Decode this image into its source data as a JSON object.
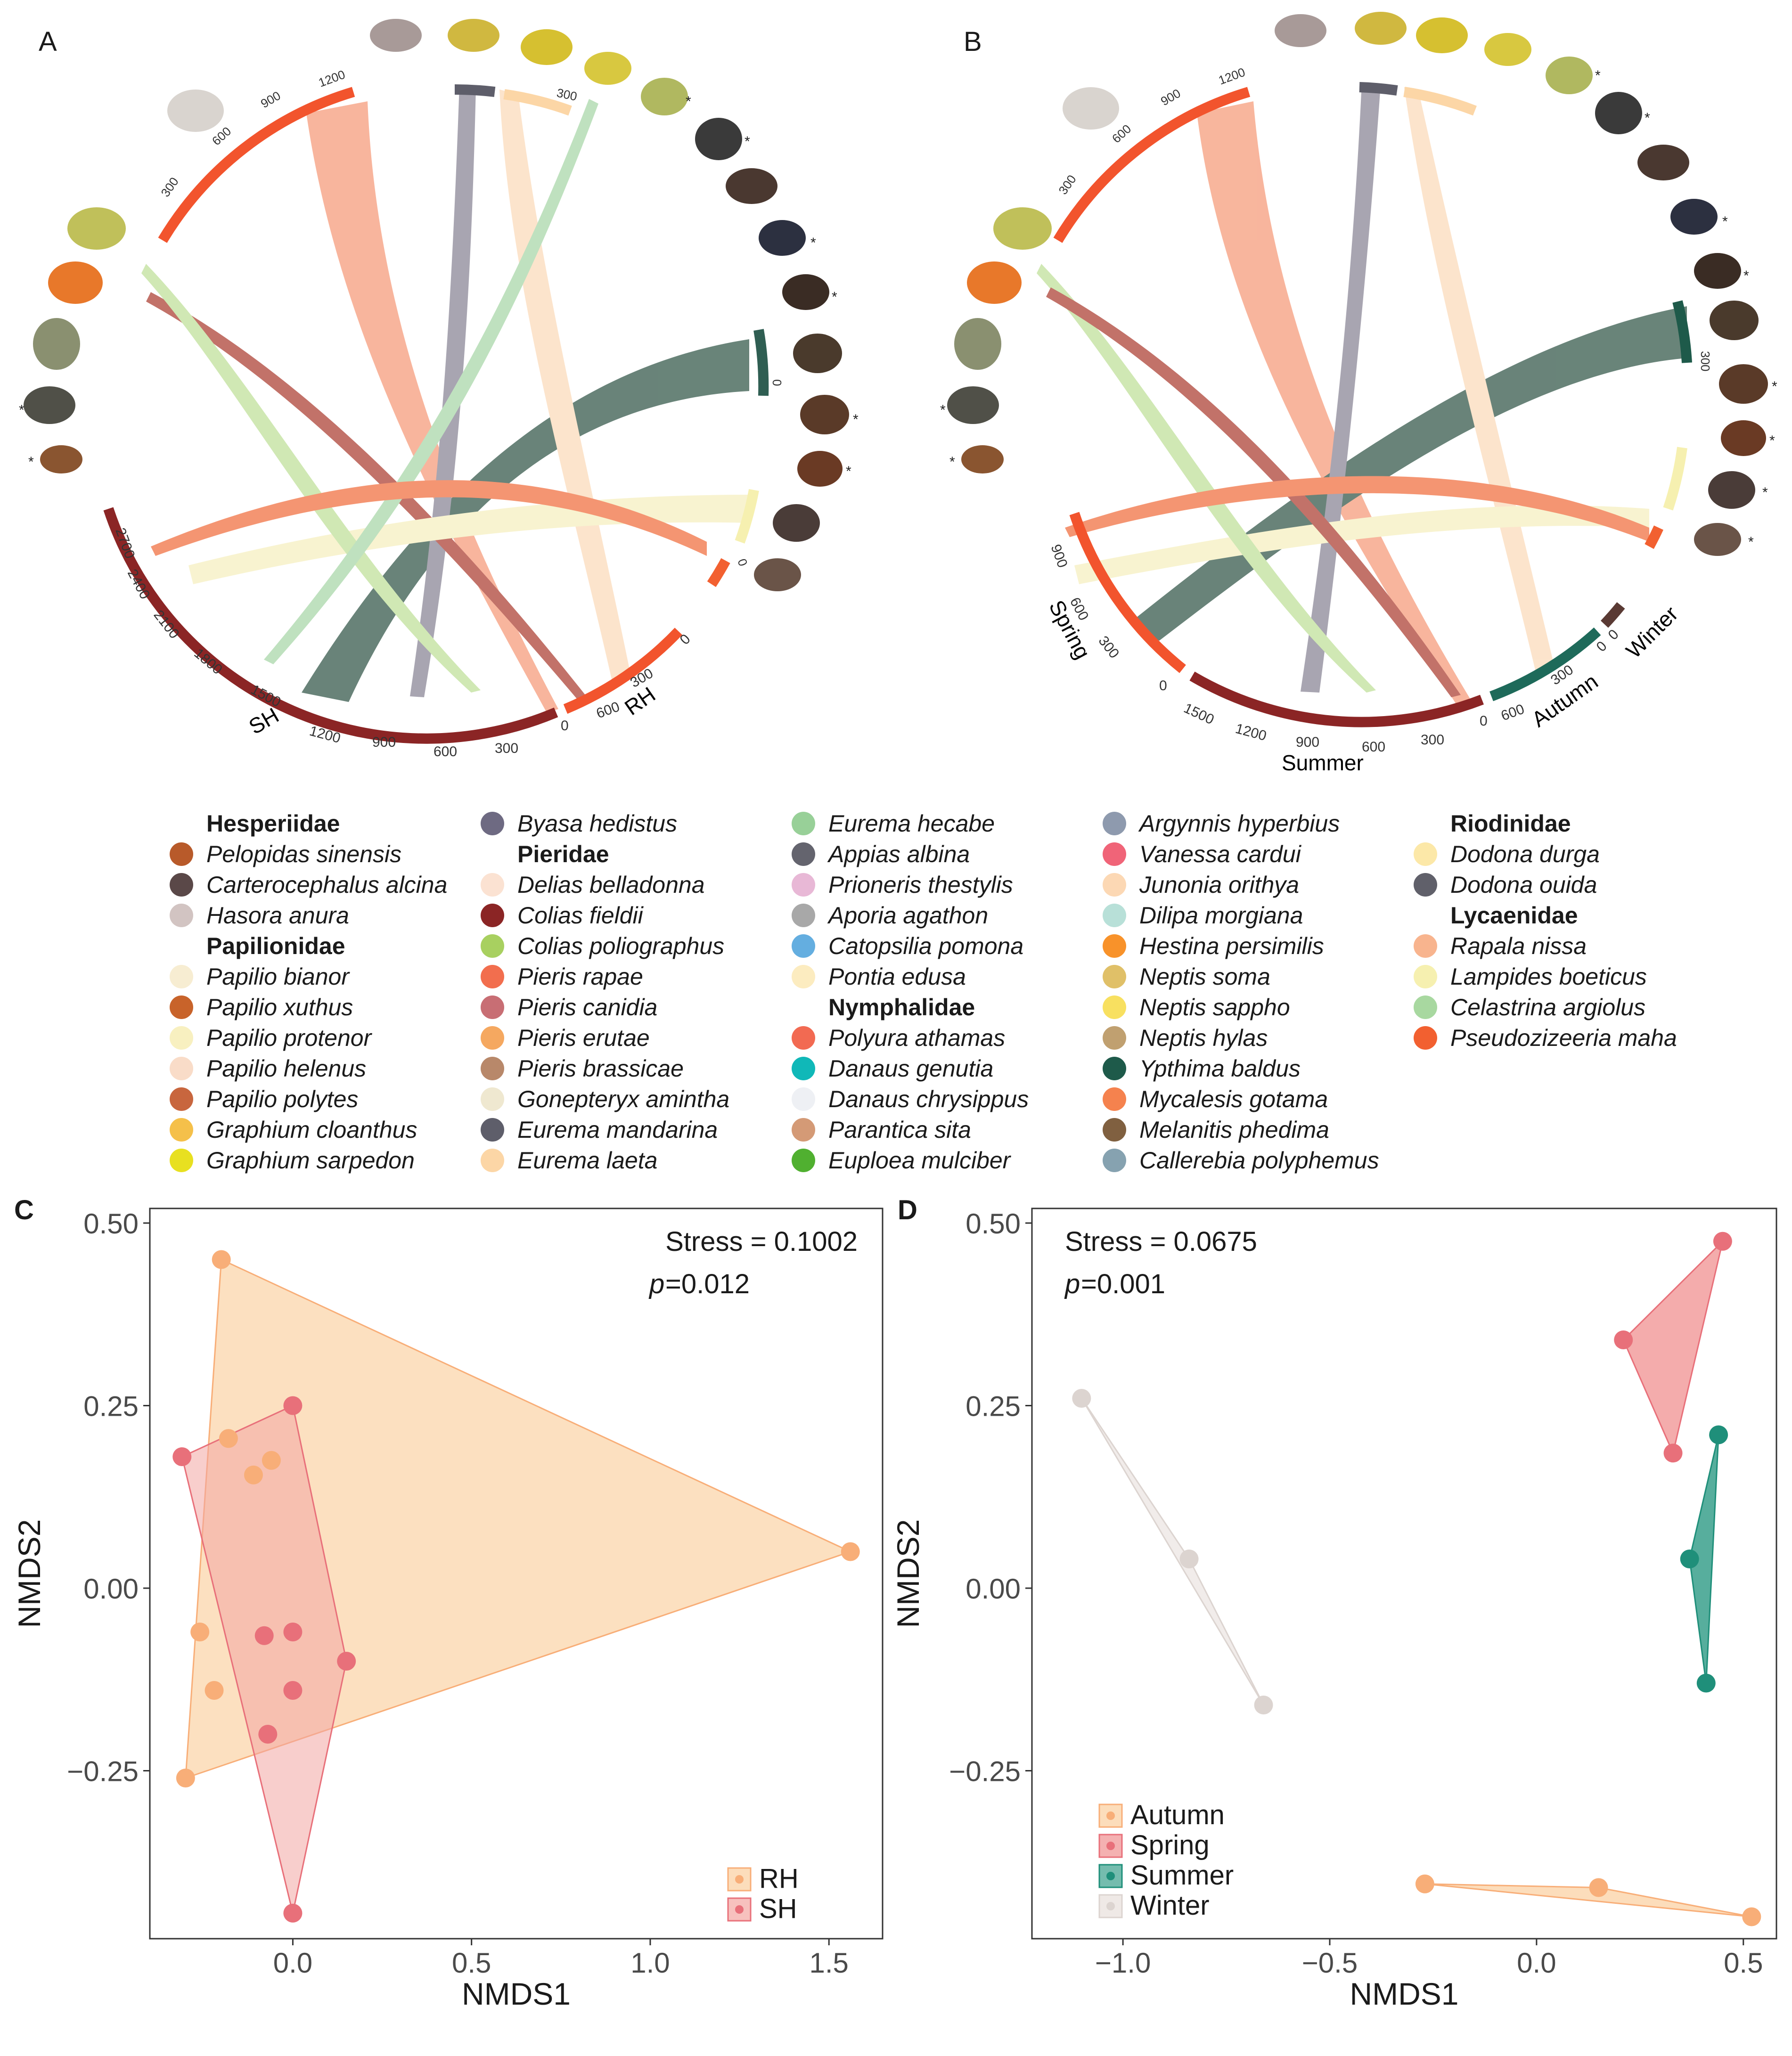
{
  "panels": {
    "A": "A",
    "B": "B",
    "C": "C",
    "D": "D"
  },
  "chord_a": {
    "groups": [
      {
        "label": "SH",
        "ticks": [
          "2700",
          "2400",
          "2100",
          "1800",
          "1500",
          "1200",
          "900",
          "600",
          "300",
          "0"
        ],
        "color": "#8b2525"
      },
      {
        "label": "RH",
        "ticks": [
          "600",
          "300",
          "0"
        ],
        "color": "#f2542d"
      }
    ],
    "species_ticks_left": [
      "300",
      "600",
      "900",
      "1200"
    ],
    "species_ticks_right": [
      "300",
      "0",
      "0"
    ],
    "stars": [
      "*",
      "*",
      "*",
      "*",
      "*",
      "*",
      "*",
      "*"
    ]
  },
  "chord_b": {
    "groups": [
      {
        "label": "Spring",
        "ticks": [
          "900",
          "600",
          "300",
          "0"
        ],
        "color": "#f2542d"
      },
      {
        "label": "Summer",
        "ticks": [
          "1500",
          "1200",
          "900",
          "600",
          "300",
          "0"
        ],
        "color": "#8b2525"
      },
      {
        "label": "Autumn",
        "ticks": [
          "600",
          "300",
          "0"
        ],
        "color": "#1e6a5a"
      },
      {
        "label": "Winter",
        "ticks": [
          "0"
        ],
        "color": "#5a3a34"
      }
    ],
    "species_ticks_left": [
      "300",
      "600",
      "900",
      "1200"
    ],
    "species_ticks_right": [
      "300"
    ],
    "stars": [
      "*",
      "*",
      "*",
      "*",
      "*",
      "*",
      "*",
      "*",
      "*",
      "*"
    ]
  },
  "legend": {
    "columns": [
      [
        {
          "family": "Hesperiidae"
        },
        {
          "name": "Pelopidas sinensis",
          "color": "#b85a2a"
        },
        {
          "name": "Carterocephalus alcina",
          "color": "#5a4848"
        },
        {
          "name": "Hasora anura",
          "color": "#d2c4c2"
        },
        {
          "family": "Papilionidae"
        },
        {
          "name": "Papilio bianor",
          "color": "#f7edd2"
        },
        {
          "name": "Papilio xuthus",
          "color": "#c8632a"
        },
        {
          "name": "Papilio protenor",
          "color": "#f8f0c0"
        },
        {
          "name": "Papilio helenus",
          "color": "#f9dcc8"
        },
        {
          "name": "Papilio polytes",
          "color": "#c8663e"
        },
        {
          "name": "Graphium cloanthus",
          "color": "#f5c04a"
        },
        {
          "name": "Graphium sarpedon",
          "color": "#e8e020"
        }
      ],
      [
        {
          "name": "Byasa hedistus",
          "color": "#6e6a82"
        },
        {
          "family": "Pieridae"
        },
        {
          "name": "Delias belladonna",
          "color": "#fbe2d2"
        },
        {
          "name": "Colias fieldii",
          "color": "#8b2525"
        },
        {
          "name": "Colias poliographus",
          "color": "#a8d060"
        },
        {
          "name": "Pieris rapae",
          "color": "#f26e4e"
        },
        {
          "name": "Pieris canidia",
          "color": "#c86e74"
        },
        {
          "name": "Pieris erutae",
          "color": "#f5a860"
        },
        {
          "name": "Pieris brassicae",
          "color": "#b8886a"
        },
        {
          "name": "Gonepteryx amintha",
          "color": "#efe8d0"
        },
        {
          "name": "Eurema mandarina",
          "color": "#5e5e6a"
        },
        {
          "name": "Eurema laeta",
          "color": "#fcd6a6"
        }
      ],
      [
        {
          "name": "Eurema hecabe",
          "color": "#98d098"
        },
        {
          "name": "Appias albina",
          "color": "#64646e"
        },
        {
          "name": "Prioneris thestylis",
          "color": "#e8b8d6"
        },
        {
          "name": "Aporia agathon",
          "color": "#a8a8a8"
        },
        {
          "name": "Catopsilia pomona",
          "color": "#64aee0"
        },
        {
          "name": "Pontia edusa",
          "color": "#fcecc0"
        },
        {
          "family": "Nymphalidae"
        },
        {
          "name": "Polyura athamas",
          "color": "#f26a52"
        },
        {
          "name": "Danaus genutia",
          "color": "#10b8b8"
        },
        {
          "name": "Danaus chrysippus",
          "color": "#eef0f4"
        },
        {
          "name": "Parantica sita",
          "color": "#d49a76"
        },
        {
          "name": "Euploea mulciber",
          "color": "#50b030"
        }
      ],
      [
        {
          "name": "Argynnis hyperbius",
          "color": "#8e9aae"
        },
        {
          "name": "Vanessa cardui",
          "color": "#f06478"
        },
        {
          "name": "Junonia orithya",
          "color": "#fcd8b4"
        },
        {
          "name": "Dilipa morgiana",
          "color": "#b8e0d8"
        },
        {
          "name": "Hestina persimilis",
          "color": "#f8922a"
        },
        {
          "name": "Neptis soma",
          "color": "#e0c068"
        },
        {
          "name": "Neptis sappho",
          "color": "#f8e060"
        },
        {
          "name": "Neptis hylas",
          "color": "#c0a070"
        },
        {
          "name": "Ypthima baldus",
          "color": "#1e5a4a"
        },
        {
          "name": "Mycalesis gotama",
          "color": "#f5824e"
        },
        {
          "name": "Melanitis phedima",
          "color": "#806040"
        },
        {
          "name": "Callerebia polyphemus",
          "color": "#86a2b0"
        }
      ],
      [
        {
          "family": "Riodinidae"
        },
        {
          "name": "Dodona durga",
          "color": "#fce8a8"
        },
        {
          "name": "Dodona ouida",
          "color": "#60606a"
        },
        {
          "family": "Lycaenidae"
        },
        {
          "name": "Rapala nissa",
          "color": "#f8b48e"
        },
        {
          "name": "Lampides boeticus",
          "color": "#f6f0b0"
        },
        {
          "name": "Celastrina argiolus",
          "color": "#a8d8a0"
        },
        {
          "name": "Pseudozizeeria maha",
          "color": "#f26030"
        }
      ]
    ]
  },
  "chart_data": [
    {
      "type": "scatter",
      "panel": "C",
      "xlabel": "NMDS1",
      "ylabel": "NMDS2",
      "xlim": [
        -0.4,
        1.65
      ],
      "ylim": [
        -0.48,
        0.52
      ],
      "xticks": [
        0.0,
        0.5,
        1.0,
        1.5
      ],
      "xtick_labels": [
        "0.0",
        "0.5",
        "1.0",
        "1.5"
      ],
      "yticks": [
        0.5,
        0.25,
        0.0,
        -0.25
      ],
      "ytick_labels": [
        "0.50",
        "0.25",
        "0.00",
        "−0.25"
      ],
      "stats_line1": "Stress = 0.1002",
      "stats_p_label": "p",
      "stats_p_value": " =0.012",
      "series": [
        {
          "name": "RH",
          "color": "#f8ae78",
          "fill": "#fbcf9e",
          "points": [
            [
              -0.2,
              0.45
            ],
            [
              1.56,
              0.05
            ],
            [
              -0.3,
              -0.26
            ],
            [
              -0.26,
              -0.06
            ],
            [
              -0.22,
              -0.14
            ],
            [
              -0.18,
              0.205
            ],
            [
              -0.06,
              0.175
            ],
            [
              -0.11,
              0.155
            ]
          ],
          "hull": [
            [
              -0.2,
              0.45
            ],
            [
              1.56,
              0.05
            ],
            [
              -0.3,
              -0.26
            ]
          ]
        },
        {
          "name": "SH",
          "color": "#e8707a",
          "fill": "#f3a6a2",
          "points": [
            [
              -0.31,
              0.18
            ],
            [
              0.0,
              0.25
            ],
            [
              0.15,
              -0.1
            ],
            [
              0.0,
              -0.445
            ],
            [
              0.0,
              -0.06
            ],
            [
              -0.08,
              -0.065
            ],
            [
              0.0,
              -0.14
            ],
            [
              -0.07,
              -0.2
            ]
          ],
          "hull": [
            [
              -0.31,
              0.18
            ],
            [
              0.0,
              0.25
            ],
            [
              0.15,
              -0.1
            ],
            [
              0.0,
              -0.445
            ]
          ]
        }
      ],
      "legend": [
        "RH",
        "SH"
      ]
    },
    {
      "type": "scatter",
      "panel": "D",
      "xlabel": "NMDS1",
      "ylabel": "NMDS2",
      "xlim": [
        -1.22,
        0.58
      ],
      "ylim": [
        -0.48,
        0.52
      ],
      "xticks": [
        -1.0,
        -0.5,
        0.0,
        0.5
      ],
      "xtick_labels": [
        "−1.0",
        "−0.5",
        "0.0",
        "0.5"
      ],
      "yticks": [
        0.5,
        0.25,
        0.0,
        -0.25
      ],
      "ytick_labels": [
        "0.50",
        "0.25",
        "0.00",
        "−0.25"
      ],
      "stats_line1": "Stress = 0.0675",
      "stats_p_label": "p",
      "stats_p_value": " =0.001",
      "series": [
        {
          "name": "Autumn",
          "color": "#f8ae78",
          "fill": "#fbcf9e",
          "points": [
            [
              -0.27,
              -0.405
            ],
            [
              0.15,
              -0.41
            ],
            [
              0.52,
              -0.45
            ]
          ],
          "hull": [
            [
              -0.27,
              -0.405
            ],
            [
              0.15,
              -0.41
            ],
            [
              0.52,
              -0.45
            ]
          ]
        },
        {
          "name": "Spring",
          "color": "#e8707a",
          "fill": "#f09090",
          "points": [
            [
              0.21,
              0.34
            ],
            [
              0.45,
              0.475
            ],
            [
              0.33,
              0.185
            ]
          ],
          "hull": [
            [
              0.21,
              0.34
            ],
            [
              0.45,
              0.475
            ],
            [
              0.33,
              0.185
            ]
          ]
        },
        {
          "name": "Summer",
          "color": "#1f8f7a",
          "fill": "#3aa08c",
          "points": [
            [
              0.44,
              0.21
            ],
            [
              0.37,
              0.04
            ],
            [
              0.41,
              -0.13
            ]
          ],
          "hull": [
            [
              0.44,
              0.21
            ],
            [
              0.37,
              0.04
            ],
            [
              0.41,
              -0.13
            ]
          ]
        },
        {
          "name": "Winter",
          "color": "#dcd4d0",
          "fill": "#e8e0dc",
          "points": [
            [
              -1.1,
              0.26
            ],
            [
              -0.84,
              0.04
            ],
            [
              -0.66,
              -0.16
            ]
          ],
          "hull": [
            [
              -1.1,
              0.26
            ],
            [
              -0.84,
              0.04
            ],
            [
              -0.66,
              -0.16
            ]
          ]
        }
      ],
      "legend": [
        "Autumn",
        "Spring",
        "Summer",
        "Winter"
      ]
    }
  ]
}
